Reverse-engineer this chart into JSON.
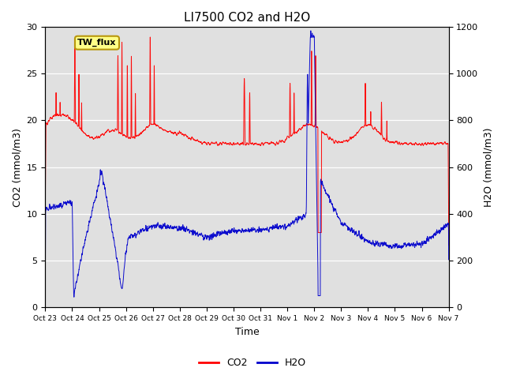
{
  "title": "LI7500 CO2 and H2O",
  "xlabel": "Time",
  "ylabel_left": "CO2 (mmol/m3)",
  "ylabel_right": "H2O (mmol/m3)",
  "annotation_text": "TW_flux",
  "co2_color": "#ff0000",
  "h2o_color": "#0000cc",
  "ylim_left": [
    0,
    30
  ],
  "ylim_right": [
    0,
    1200
  ],
  "xtick_labels": [
    "Oct 23",
    "Oct 24",
    "Oct 25",
    "Oct 26",
    "Oct 27",
    "Oct 28",
    "Oct 29",
    "Oct 30",
    "Oct 31",
    "Nov 1",
    "Nov 2",
    "Nov 3",
    "Nov 4",
    "Nov 5",
    "Nov 6",
    "Nov 7"
  ],
  "background_color": "#e0e0e0",
  "figure_background": "#ffffff",
  "legend_co2": "CO2",
  "legend_h2o": "H2O",
  "n_days": 15,
  "pts_per_day": 480
}
